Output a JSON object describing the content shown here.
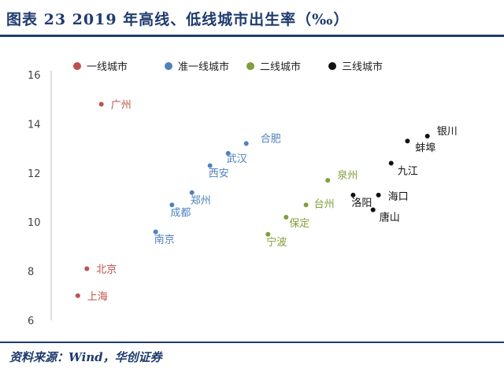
{
  "title": "图表 23    2019 年高线、低线城市出生率（‰）",
  "source": "资料来源：Wind，华创证券",
  "chart_data": {
    "type": "scatter",
    "ylim": [
      6,
      16
    ],
    "yticks": [
      6,
      8,
      10,
      12,
      14,
      16
    ],
    "grid": false,
    "legend_position": "top",
    "series": [
      {
        "name": "一线城市",
        "color": "#c0504d",
        "points": [
          {
            "label": "广州",
            "x": 1.9,
            "y": 14.8
          },
          {
            "label": "北京",
            "x": 1.1,
            "y": 8.1
          },
          {
            "label": "上海",
            "x": 0.6,
            "y": 7.0
          }
        ]
      },
      {
        "name": "准一线城市",
        "color": "#4f81bd",
        "points": [
          {
            "label": "合肥",
            "x": 9.9,
            "y": 13.2
          },
          {
            "label": "武汉",
            "x": 8.9,
            "y": 12.8
          },
          {
            "label": "西安",
            "x": 7.9,
            "y": 12.3
          },
          {
            "label": "郑州",
            "x": 6.9,
            "y": 11.2
          },
          {
            "label": "成都",
            "x": 5.8,
            "y": 10.7
          },
          {
            "label": "南京",
            "x": 4.9,
            "y": 9.6
          }
        ]
      },
      {
        "name": "二线城市",
        "color": "#7f9f3a",
        "points": [
          {
            "label": "泉州",
            "x": 14.4,
            "y": 11.7
          },
          {
            "label": "台州",
            "x": 13.2,
            "y": 10.7
          },
          {
            "label": "保定",
            "x": 12.1,
            "y": 10.2
          },
          {
            "label": "宁波",
            "x": 11.1,
            "y": 9.5
          }
        ]
      },
      {
        "name": "三线城市",
        "color": "#111111",
        "points": [
          {
            "label": "银川",
            "x": 19.9,
            "y": 13.5
          },
          {
            "label": "蚌埠",
            "x": 18.8,
            "y": 13.3
          },
          {
            "label": "九江",
            "x": 17.9,
            "y": 12.4
          },
          {
            "label": "海口",
            "x": 17.2,
            "y": 11.1
          },
          {
            "label": "洛阳",
            "x": 15.8,
            "y": 11.1
          },
          {
            "label": "唐山",
            "x": 16.9,
            "y": 10.5
          }
        ]
      }
    ]
  }
}
